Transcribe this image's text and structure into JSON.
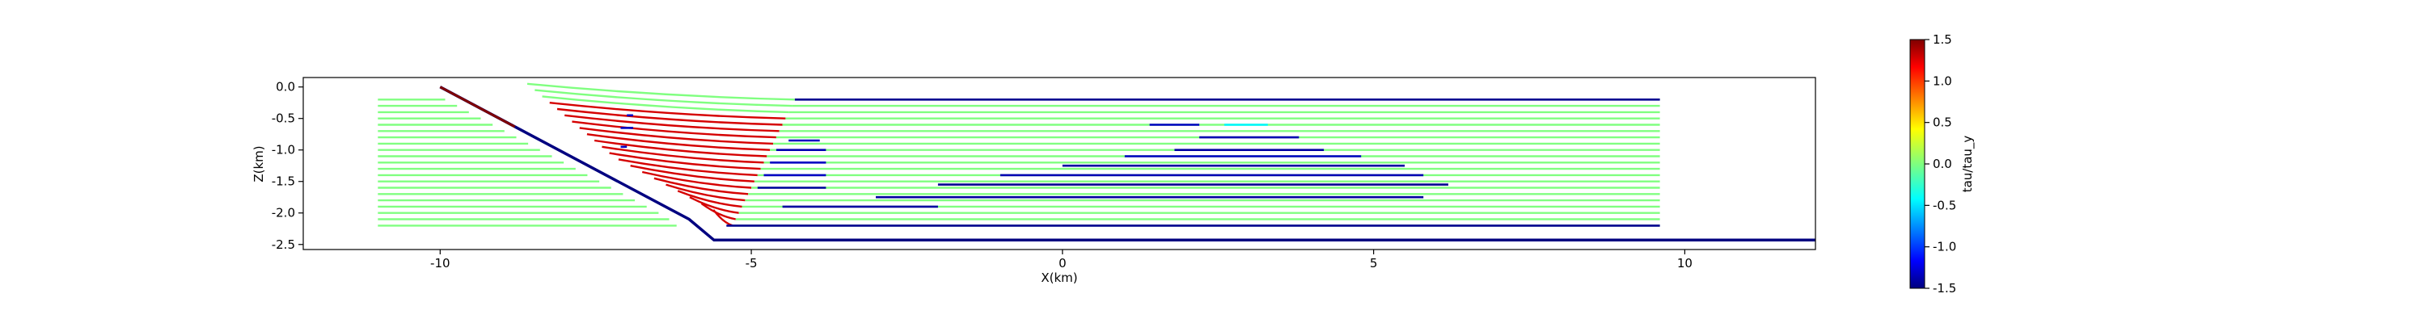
{
  "chart_data": {
    "type": "line",
    "title": "",
    "xlabel": "X(km)",
    "ylabel": "Z(km)",
    "xlim": [
      -12.2,
      12.1
    ],
    "ylim": [
      -2.58,
      0.15
    ],
    "xticks": [
      "-10",
      "-5",
      "0",
      "5",
      "10"
    ],
    "xtick_values": [
      -10,
      -5,
      0,
      5,
      10
    ],
    "yticks": [
      "0.0",
      "-0.5",
      "-1.0",
      "-1.5",
      "-2.0",
      "-2.5"
    ],
    "ytick_values": [
      0.0,
      -0.5,
      -1.0,
      -1.5,
      -2.0,
      -2.5
    ],
    "grid": false,
    "colorbar": {
      "label": "tau/tau_y",
      "colormap": "jet",
      "range": [
        -1.5,
        1.5
      ],
      "ticks": [
        "1.5",
        "1.0",
        "0.5",
        "0.0",
        "-0.5",
        "-1.0",
        "-1.5"
      ],
      "tick_values": [
        1.5,
        1.0,
        0.5,
        0.0,
        -0.5,
        -1.0,
        -1.5
      ]
    },
    "fault": {
      "color": "#000080",
      "points": [
        [
          -10.0,
          0.0
        ],
        [
          -6.0,
          -2.1
        ],
        [
          -5.6,
          -2.43
        ],
        [
          12.1,
          -2.43
        ]
      ]
    },
    "streamlines": {
      "count": 21,
      "z_top": -0.2,
      "z_bottom": -2.2,
      "x_start": -11.0,
      "x_end": 9.6,
      "color_by_zone": {
        "left_background": 0.0,
        "red_band": 1.25,
        "right_background": 0.0
      }
    },
    "blue_segments": [
      {
        "z": -0.2,
        "x0": -4.3,
        "x1": 9.6,
        "value": -1.45
      },
      {
        "z": -0.6,
        "x0": 1.4,
        "x1": 2.2,
        "value": -1.3
      },
      {
        "z": -0.6,
        "x0": 2.6,
        "x1": 3.3,
        "value": -0.4
      },
      {
        "z": -0.8,
        "x0": 2.2,
        "x1": 3.8,
        "value": -1.35
      },
      {
        "z": -1.0,
        "x0": 1.8,
        "x1": 4.2,
        "value": -1.4
      },
      {
        "z": -1.1,
        "x0": 1.0,
        "x1": 4.8,
        "value": -1.3
      },
      {
        "z": -1.25,
        "x0": 0.0,
        "x1": 5.5,
        "value": -1.4
      },
      {
        "z": -1.4,
        "x0": -1.0,
        "x1": 5.8,
        "value": -1.35
      },
      {
        "z": -1.55,
        "x0": -2.0,
        "x1": 6.2,
        "value": -1.45
      },
      {
        "z": -1.75,
        "x0": -3.0,
        "x1": 5.8,
        "value": -1.4
      },
      {
        "z": -1.9,
        "x0": -4.5,
        "x1": -2.0,
        "value": -1.4
      },
      {
        "z": -2.2,
        "x0": -5.4,
        "x1": 9.6,
        "value": -1.45
      },
      {
        "z": -0.85,
        "x0": -4.4,
        "x1": -3.9,
        "value": -1.3
      },
      {
        "z": -1.0,
        "x0": -4.6,
        "x1": -3.8,
        "value": -1.35
      },
      {
        "z": -1.2,
        "x0": -4.7,
        "x1": -3.8,
        "value": -1.3
      },
      {
        "z": -1.4,
        "x0": -4.8,
        "x1": -3.8,
        "value": -1.3
      },
      {
        "z": -1.6,
        "x0": -4.9,
        "x1": -3.8,
        "value": -1.4
      },
      {
        "z": -0.45,
        "x0": -7.0,
        "x1": -6.9,
        "value": -1.3
      },
      {
        "z": -0.65,
        "x0": -7.1,
        "x1": -6.9,
        "value": -1.3
      },
      {
        "z": -0.95,
        "x0": -7.1,
        "x1": -7.0,
        "value": -1.3
      }
    ]
  }
}
